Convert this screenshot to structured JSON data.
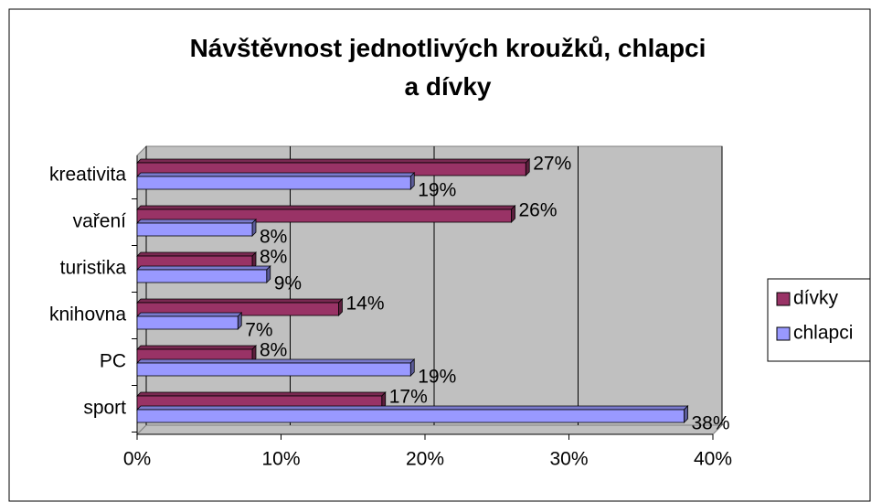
{
  "chart_data": {
    "type": "bar",
    "orientation": "horizontal",
    "title": "Návštěvnost jednotlivých kroužků, chlapci a dívky",
    "categories": [
      "kreativita",
      "vaření",
      "turistika",
      "knihovna",
      "PC",
      "sport"
    ],
    "series": [
      {
        "name": "dívky",
        "color": "#993366",
        "values": [
          27,
          26,
          8,
          14,
          8,
          17
        ],
        "value_labels": [
          "27%",
          "26%",
          "8%",
          "14%",
          "8%",
          "17%"
        ]
      },
      {
        "name": "chlapci",
        "color": "#9999ff",
        "values": [
          19,
          8,
          9,
          7,
          19,
          38
        ],
        "value_labels": [
          "19%",
          "8%",
          "9%",
          "7%",
          "19%",
          "38%"
        ]
      }
    ],
    "xlim": [
      0,
      40
    ],
    "xticks": [
      {
        "value": 0,
        "label": "0%"
      },
      {
        "value": 10,
        "label": "10%"
      },
      {
        "value": 20,
        "label": "20%"
      },
      {
        "value": 30,
        "label": "30%"
      },
      {
        "value": 40,
        "label": "40%"
      }
    ],
    "grid": true,
    "legend": "right"
  }
}
